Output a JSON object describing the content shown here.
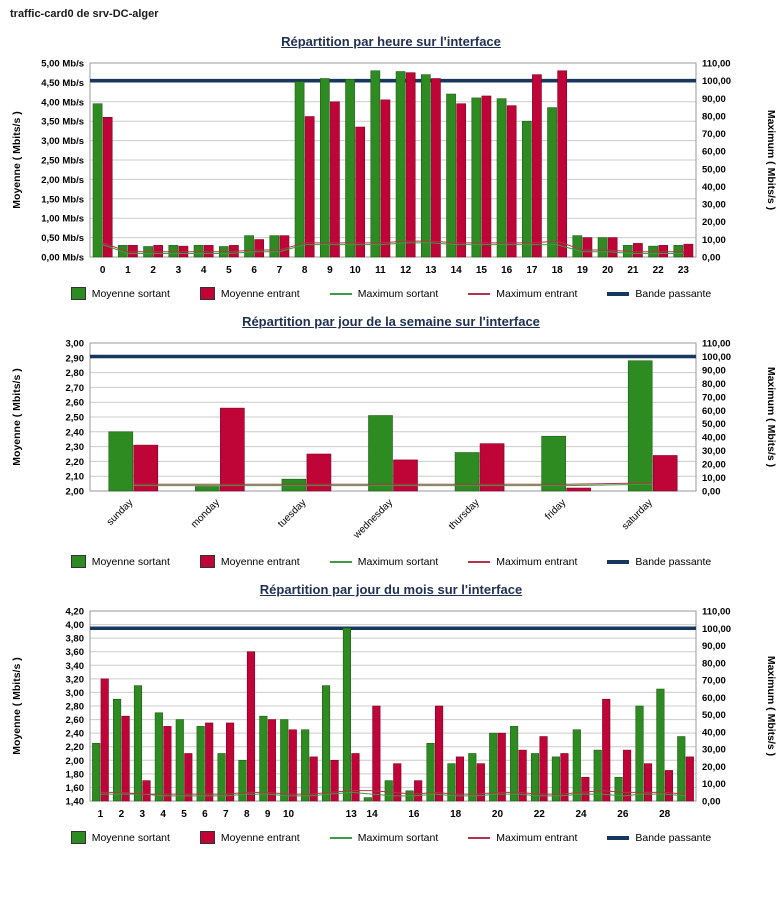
{
  "header": "traffic-card0 de srv-DC-alger",
  "colors": {
    "avg_out": "#2e8b22",
    "avg_out_edge": "#1d5c14",
    "avg_in": "#bf0437",
    "avg_in_edge": "#800223",
    "max_out": "#3f9b3f",
    "max_in": "#b03449",
    "band": "#17375e",
    "grid": "#cccccc",
    "plot_border": "#999999"
  },
  "legend": {
    "items": [
      {
        "label": "Moyenne sortant",
        "type": "bar",
        "color": "#2e8b22"
      },
      {
        "label": "Moyenne entrant",
        "type": "bar",
        "color": "#bf0437"
      },
      {
        "label": "Maximum sortant",
        "type": "line",
        "color": "#3f9b3f"
      },
      {
        "label": "Maximum entrant",
        "type": "line",
        "color": "#b03449"
      },
      {
        "label": "Bande passante",
        "type": "band",
        "color": "#17375e"
      }
    ]
  },
  "chart_data": [
    {
      "type": "bar",
      "title": "Répartition par heure sur l'interface",
      "left_axis": {
        "label": "Moyenne ( Mbits/s )",
        "min": 0,
        "max": 5,
        "step": 0.5,
        "suffix": " Mb/s"
      },
      "right_axis": {
        "label": "Maximum ( Mbits/s )",
        "min": 0,
        "max": 110,
        "step": 10
      },
      "categories": [
        "0",
        "1",
        "2",
        "3",
        "4",
        "5",
        "6",
        "7",
        "8",
        "9",
        "10",
        "11",
        "12",
        "13",
        "14",
        "15",
        "16",
        "17",
        "18",
        "19",
        "20",
        "21",
        "22",
        "23"
      ],
      "label_rotation": 0,
      "series": [
        {
          "name": "Moyenne sortant",
          "axis": "left",
          "values": [
            3.95,
            0.3,
            0.27,
            0.3,
            0.3,
            0.27,
            0.55,
            0.55,
            4.52,
            4.6,
            4.58,
            4.8,
            4.78,
            4.7,
            4.2,
            4.1,
            4.08,
            3.5,
            3.85,
            0.55,
            0.5,
            0.3,
            0.28,
            0.3
          ]
        },
        {
          "name": "Moyenne entrant",
          "axis": "left",
          "values": [
            3.6,
            0.3,
            0.3,
            0.28,
            0.3,
            0.3,
            0.45,
            0.55,
            3.62,
            4.0,
            3.35,
            4.05,
            4.75,
            4.6,
            3.95,
            4.15,
            3.9,
            4.7,
            4.8,
            0.5,
            0.5,
            0.35,
            0.3,
            0.33
          ]
        }
      ],
      "lines": [
        {
          "name": "Maximum sortant",
          "axis": "right",
          "values": [
            7,
            2,
            2,
            2,
            2,
            2,
            3,
            3,
            7,
            7,
            7,
            7,
            8,
            8,
            7,
            7,
            7,
            7,
            7,
            3,
            3,
            2,
            2,
            2
          ]
        },
        {
          "name": "Maximum entrant",
          "axis": "right",
          "values": [
            8,
            3,
            3,
            3,
            3,
            3,
            4,
            4,
            8,
            8,
            8,
            8,
            9,
            9,
            8,
            8,
            8,
            8,
            9,
            4,
            4,
            3,
            3,
            3
          ]
        },
        {
          "name": "Bande passante",
          "axis": "right",
          "constant": 100
        }
      ]
    },
    {
      "type": "bar",
      "title": "Répartition par jour de la semaine sur l'interface",
      "left_axis": {
        "label": "Moyenne ( Mbits/s )",
        "min": 2.0,
        "max": 3.0,
        "step": 0.1,
        "suffix": ""
      },
      "right_axis": {
        "label": "Maximum ( Mbits/s )",
        "min": 0,
        "max": 110,
        "step": 10
      },
      "categories": [
        "sunday",
        "monday",
        "tuesday",
        "wednesday",
        "thursday",
        "friday",
        "saturday"
      ],
      "label_rotation": -45,
      "series": [
        {
          "name": "Moyenne sortant",
          "axis": "left",
          "values": [
            2.4,
            2.03,
            2.08,
            2.51,
            2.26,
            2.37,
            2.88
          ]
        },
        {
          "name": "Moyenne entrant",
          "axis": "left",
          "values": [
            2.31,
            2.56,
            2.25,
            2.21,
            2.32,
            2.02,
            2.24
          ]
        }
      ],
      "lines": [
        {
          "name": "Maximum sortant",
          "axis": "right",
          "values": [
            4,
            4,
            4,
            4,
            4,
            4,
            5
          ]
        },
        {
          "name": "Maximum entrant",
          "axis": "right",
          "values": [
            5,
            5,
            5,
            5,
            5,
            5,
            6
          ]
        },
        {
          "name": "Bande passante",
          "axis": "right",
          "constant": 100
        }
      ]
    },
    {
      "type": "bar",
      "title": "Répartition par jour du mois sur l'interface",
      "left_axis": {
        "label": "Moyenne ( Mbits/s )",
        "min": 1.4,
        "max": 4.2,
        "step": 0.2,
        "suffix": ""
      },
      "right_axis": {
        "label": "Maximum ( Mbits/s )",
        "min": 0,
        "max": 110,
        "step": 10
      },
      "categories": [
        "1",
        "2",
        "3",
        "4",
        "5",
        "6",
        "7",
        "8",
        "9",
        "10",
        "11",
        "12",
        "13",
        "14",
        "15",
        "16",
        "17",
        "18",
        "19",
        "20",
        "21",
        "22",
        "23",
        "24",
        "25",
        "26",
        "27",
        "28",
        "29"
      ],
      "x_labels": [
        "1",
        "2",
        "3",
        "4",
        "5",
        "6",
        "7",
        "8",
        "9",
        "10",
        "",
        "",
        "13",
        "14",
        "",
        "16",
        "",
        "18",
        "",
        "20",
        "",
        "22",
        "",
        "24",
        "",
        "26",
        "",
        "28",
        ""
      ],
      "label_rotation": 0,
      "series": [
        {
          "name": "Moyenne sortant",
          "axis": "left",
          "values": [
            2.25,
            2.9,
            3.1,
            2.7,
            2.6,
            2.5,
            2.1,
            2.0,
            2.65,
            2.6,
            2.45,
            3.1,
            3.95,
            1.45,
            1.7,
            1.55,
            2.25,
            1.95,
            2.1,
            2.4,
            2.5,
            2.1,
            2.05,
            2.45,
            2.15,
            1.75,
            2.8,
            3.05,
            2.35
          ]
        },
        {
          "name": "Moyenne entrant",
          "axis": "left",
          "values": [
            3.2,
            2.65,
            1.7,
            2.5,
            2.1,
            2.55,
            2.55,
            3.6,
            2.6,
            2.45,
            2.05,
            2.0,
            2.1,
            2.8,
            1.95,
            1.7,
            2.8,
            2.05,
            1.95,
            2.4,
            2.15,
            2.35,
            2.1,
            1.75,
            2.9,
            2.15,
            1.95,
            1.85,
            2.05
          ]
        }
      ],
      "lines": [
        {
          "name": "Maximum sortant",
          "axis": "right",
          "values": [
            4,
            4,
            4,
            3,
            3,
            3,
            3,
            4,
            4,
            3,
            3,
            4,
            5,
            4,
            3,
            3,
            4,
            3,
            3,
            4,
            4,
            3,
            3,
            4,
            4,
            3,
            4,
            4,
            3
          ]
        },
        {
          "name": "Maximum entrant",
          "axis": "right",
          "values": [
            5,
            5,
            4,
            4,
            4,
            4,
            4,
            5,
            5,
            4,
            4,
            5,
            6,
            6,
            5,
            4,
            5,
            4,
            4,
            5,
            5,
            4,
            4,
            5,
            6,
            5,
            5,
            5,
            4
          ]
        },
        {
          "name": "Bande passante",
          "axis": "right",
          "constant": 100
        }
      ]
    }
  ]
}
